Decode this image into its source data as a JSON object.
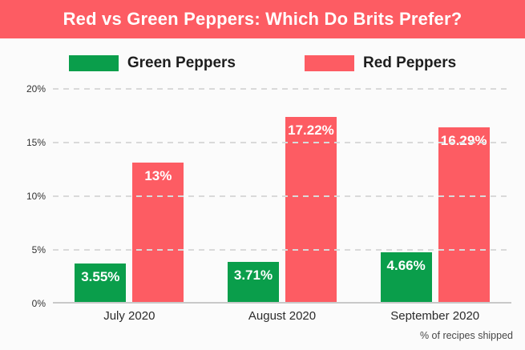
{
  "title": "Red vs Green Peppers: Which Do Brits Prefer?",
  "footnote": "% of recipes shipped",
  "colors": {
    "banner": "#fd5c63",
    "green": "#0a9e4b",
    "red": "#fd5c63",
    "grid": "#d9d9d9",
    "axis": "#c9c9c9",
    "background": "#fbfbfb"
  },
  "legend": {
    "items": [
      {
        "label": "Green Peppers",
        "color": "#0a9e4b"
      },
      {
        "label": "Red Peppers",
        "color": "#fd5c63"
      }
    ]
  },
  "chart_data": {
    "type": "bar",
    "title": "Red vs Green Peppers: Which Do Brits Prefer?",
    "categories": [
      "July 2020",
      "August 2020",
      "September 2020"
    ],
    "series": [
      {
        "name": "Green Peppers",
        "color": "#0a9e4b",
        "values": [
          3.55,
          3.71,
          4.66
        ],
        "labels": [
          "3.55%",
          "3.71%",
          "4.66%"
        ]
      },
      {
        "name": "Red Peppers",
        "color": "#fd5c63",
        "values": [
          13,
          17.22,
          16.29
        ],
        "labels": [
          "13%",
          "17.22%",
          "16.29%"
        ]
      }
    ],
    "ylabel": "",
    "xlabel": "",
    "ylim": [
      0,
      20
    ],
    "yticks": [
      0,
      5,
      10,
      15,
      20
    ],
    "ytick_labels": [
      "0%",
      "5%",
      "10%",
      "15%",
      "20%"
    ],
    "grid": "horizontal-dashed",
    "legend_position": "top",
    "note": "% of recipes shipped"
  }
}
